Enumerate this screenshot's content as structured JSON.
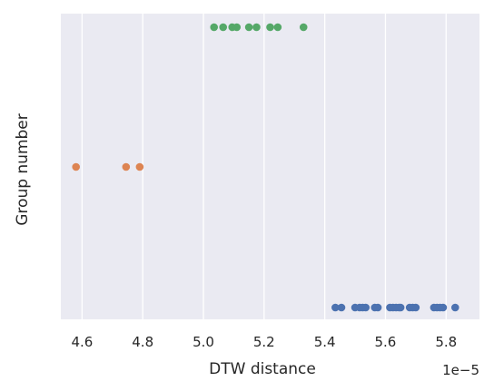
{
  "chart_data": {
    "type": "scatter",
    "title": "",
    "xlabel": "DTW distance",
    "ylabel": "Group number",
    "x_offset_label": "1e−5",
    "xlim": [
      4.53,
      5.91
    ],
    "x_ticks": [
      4.6,
      4.8,
      5.0,
      5.2,
      5.4,
      5.6,
      5.8
    ],
    "x_tick_labels": [
      "4.6",
      "4.8",
      "5.0",
      "5.2",
      "5.4",
      "5.6",
      "5.8"
    ],
    "grid": true,
    "background": "#EAEAF2",
    "series": [
      {
        "group_level": 3,
        "color": "#55A868",
        "values": [
          5.035,
          5.065,
          5.095,
          5.11,
          5.15,
          5.175,
          5.22,
          5.245,
          5.33
        ]
      },
      {
        "group_level": 2,
        "color": "#DD8452",
        "values": [
          4.58,
          4.745,
          4.79
        ]
      },
      {
        "group_level": 1,
        "color": "#4C72B0",
        "values": [
          5.435,
          5.455,
          5.5,
          5.515,
          5.525,
          5.535,
          5.565,
          5.575,
          5.615,
          5.625,
          5.635,
          5.645,
          5.65,
          5.68,
          5.69,
          5.7,
          5.76,
          5.77,
          5.78,
          5.79,
          5.83
        ]
      }
    ]
  }
}
